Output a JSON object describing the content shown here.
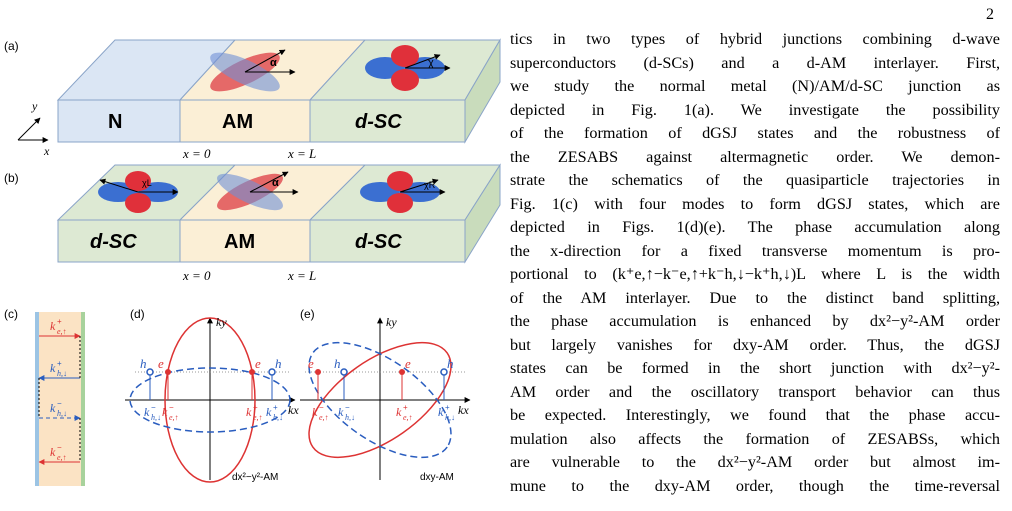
{
  "page_number": "2",
  "figure": {
    "panel_labels": [
      "(a)",
      "(b)",
      "(c)",
      "(d)",
      "(e)"
    ],
    "panel_a": {
      "regions": [
        "N",
        "AM",
        "d-SC"
      ],
      "positions": [
        "x = 0",
        "x = L"
      ],
      "axes": [
        "y",
        "x"
      ],
      "angles": [
        "α",
        "χ"
      ]
    },
    "panel_b": {
      "regions": [
        "d-SC",
        "AM",
        "d-SC"
      ],
      "positions": [
        "x = 0",
        "x = L"
      ],
      "angles": [
        "χL",
        "α",
        "χR"
      ]
    },
    "panel_c": {
      "labels": [
        {
          "k": "k",
          "sup": "+",
          "sub": "e,↑"
        },
        {
          "k": "k",
          "sup": "+",
          "sub": "h,↓"
        },
        {
          "k": "k",
          "sup": "−",
          "sub": "h,↓"
        },
        {
          "k": "k",
          "sup": "−",
          "sub": "e,↑"
        }
      ]
    },
    "panel_d": {
      "axes": [
        "ky",
        "kx"
      ],
      "points": [
        "h",
        "e",
        "e",
        "h"
      ],
      "labels": [
        {
          "k": "k",
          "sup": "−",
          "sub": "h,↓"
        },
        {
          "k": "k",
          "sup": "−",
          "sub": "e,↑"
        },
        {
          "k": "k",
          "sup": "+",
          "sub": "e,↑"
        },
        {
          "k": "k",
          "sup": "+",
          "sub": "h,↓"
        }
      ],
      "caption": "dx²−y²-AM"
    },
    "panel_e": {
      "axes": [
        "ky",
        "kx"
      ],
      "points": [
        "e",
        "h",
        "e",
        "h"
      ],
      "labels": [
        {
          "k": "k",
          "sup": "−",
          "sub": "e,↑"
        },
        {
          "k": "k",
          "sup": "−",
          "sub": "h,↓"
        },
        {
          "k": "k",
          "sup": "+",
          "sub": "e,↑"
        },
        {
          "k": "k",
          "sup": "+",
          "sub": "h,↓"
        }
      ],
      "caption": "dxy-AM"
    }
  },
  "text_lines": [
    "tics in two types of hybrid junctions combining d-wave",
    "superconductors (d-SCs) and a d-AM interlayer. First,",
    "we study the normal metal (N)/AM/d-SC junction as",
    "depicted in Fig. 1(a). We investigate the possibility",
    "of the formation of dGSJ states and the robustness of",
    "the ZESABS against altermagnetic order. We demon-",
    "strate the schematics of the quasiparticle trajectories in",
    "Fig. 1(c) with four modes to form dGSJ states, which are",
    "depicted in Figs. 1(d)(e). The phase accumulation along",
    "the x-direction for a fixed transverse momentum is pro-",
    "portional to (k⁺e,↑−k⁻e,↑+k⁻h,↓−k⁺h,↓)L where L is the width",
    "of the AM interlayer. Due to the distinct band splitting,",
    "the phase accumulation is enhanced by dx²−y²-AM order",
    "but largely vanishes for dxy-AM order. Thus, the dGSJ",
    "states can be formed in the short junction with dx²−y²-",
    "AM order and the oscillatory transport behavior can thus",
    "be expected. Interestingly, we found that the phase accu-",
    "mulation also affects the formation of ZESABSs, which",
    "are vulnerable to the dx²−y²-AM order but almost im-",
    "mune to the dxy-AM order, though the time-reversal"
  ]
}
